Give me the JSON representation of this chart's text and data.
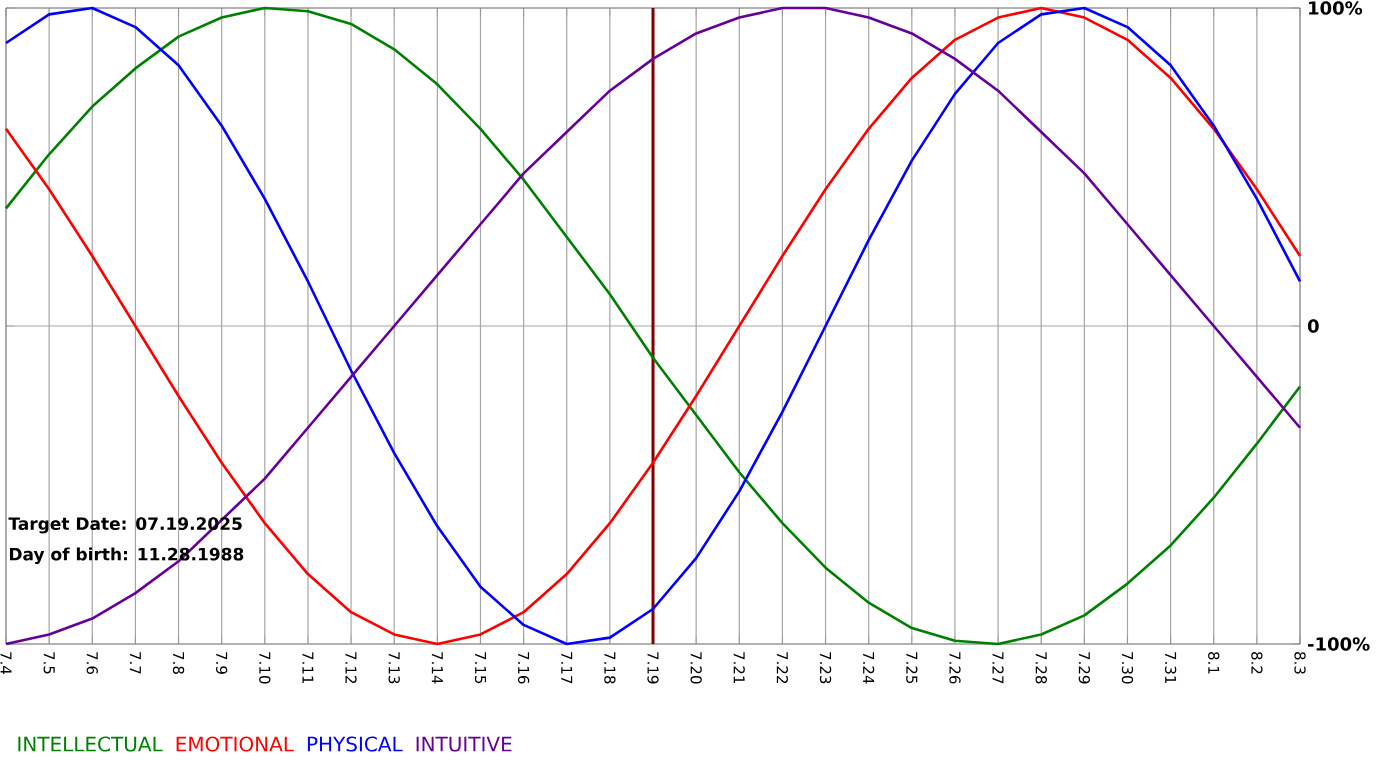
{
  "chart_data": {
    "type": "line",
    "categories": [
      "7.4",
      "7.5",
      "7.6",
      "7.7",
      "7.8",
      "7.9",
      "7.10",
      "7.11",
      "7.12",
      "7.13",
      "7.14",
      "7.15",
      "7.16",
      "7.17",
      "7.18",
      "7.19",
      "7.20",
      "7.21",
      "7.22",
      "7.23",
      "7.24",
      "7.25",
      "7.26",
      "7.27",
      "7.28",
      "7.29",
      "7.30",
      "7.31",
      "8.1",
      "8.2",
      "8.3"
    ],
    "series": [
      {
        "name": "INTELLECTUAL",
        "color": "#008000",
        "values": [
          37,
          54,
          69,
          81,
          91,
          97,
          100,
          99,
          95,
          87,
          76,
          62,
          46,
          28,
          10,
          -10,
          -28,
          -46,
          -62,
          -76,
          -87,
          -95,
          -99,
          -100,
          -97,
          -91,
          -81,
          -69,
          -54,
          -37,
          -19
        ]
      },
      {
        "name": "EMOTIONAL",
        "color": "#ff0000",
        "values": [
          62,
          43,
          22,
          0,
          -22,
          -43,
          -62,
          -78,
          -90,
          -97,
          -100,
          -97,
          -90,
          -78,
          -62,
          -43,
          -22,
          0,
          22,
          43,
          62,
          78,
          90,
          97,
          100,
          97,
          90,
          78,
          62,
          43,
          22
        ]
      },
      {
        "name": "PHYSICAL",
        "color": "#0000ff",
        "values": [
          89,
          98,
          100,
          94,
          82,
          63,
          40,
          14,
          -14,
          -40,
          -63,
          -82,
          -94,
          -100,
          -98,
          -89,
          -73,
          -52,
          -27,
          0,
          27,
          52,
          73,
          89,
          98,
          100,
          94,
          82,
          63,
          40,
          14
        ]
      },
      {
        "name": "INTUITIVE",
        "color": "#660099",
        "values": [
          -100,
          -97,
          -92,
          -84,
          -74,
          -61,
          -48,
          -32,
          -16,
          0,
          16,
          32,
          48,
          61,
          74,
          84,
          92,
          97,
          100,
          100,
          97,
          92,
          84,
          74,
          61,
          48,
          32,
          16,
          0,
          -16,
          -32
        ]
      }
    ],
    "ylim": [
      -100,
      100
    ],
    "yticks": [
      {
        "value": -100,
        "label": "-100%"
      },
      0,
      {
        "value": 100,
        "label": "100%"
      }
    ],
    "grid": true,
    "legend": "bottom left",
    "marker": "none",
    "line_style": "solid",
    "ref_lines": [
      {
        "axis": "x",
        "value": "7.19",
        "color": "#800000"
      }
    ],
    "annotations": [
      "Target Date: 07.19.2025",
      "Day of birth: 11.28.1988"
    ]
  }
}
